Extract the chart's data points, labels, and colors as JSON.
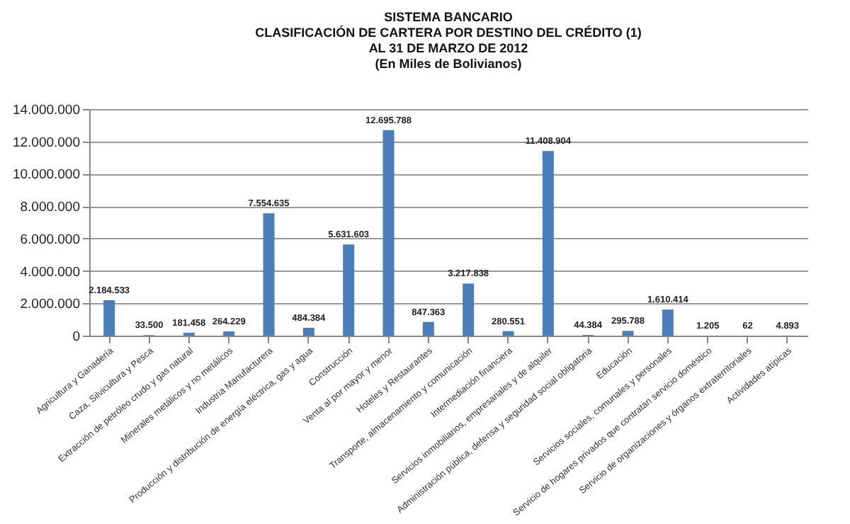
{
  "chart_data": {
    "type": "bar",
    "title": [
      "SISTEMA BANCARIO",
      "CLASIFICACIÓN DE CARTERA POR DESTINO DEL CRÉDITO (1)",
      "AL 31 DE MARZO  DE 2012",
      "(En Miles de Bolivianos)"
    ],
    "categories": [
      "Agricultura y Ganadería",
      "Caza, Silvicultura y Pesca",
      "Extracción de petróleo crudo y gas natural",
      "Minerales metálicos y no metálicos",
      "Industria Manufacturera",
      "Producción y distribución de energía eléctrica, gas y agua",
      "Construcción",
      "Venta al por mayor y menor",
      "Hoteles y Restaurantes",
      "Transporte, almacenamiento y comunicación",
      "Intermediación financiera",
      "Servicios inmobiliarios, empresariales y de alquiler",
      "Administración pública, defensa y seguridad social obligatoria",
      "Educación",
      "Servicios sociales, comunales y personales",
      "Servicio de hogares privados que contratan servicio doméstico",
      "Servicio de organizaciones y órganos extraterritoriales",
      "Actividades atípicas"
    ],
    "values": [
      2184533,
      33500,
      181458,
      264229,
      7554635,
      484384,
      5631603,
      12695788,
      847363,
      3217838,
      280551,
      11408904,
      44384,
      295788,
      1610414,
      1205,
      62,
      4893
    ],
    "value_labels": [
      "2.184.533",
      "33.500",
      "181.458",
      "264.229",
      "7.554.635",
      "484.384",
      "5.631.603",
      "12.695.788",
      "847.363",
      "3.217.838",
      "280.551",
      "11.408.904",
      "44.384",
      "295.788",
      "1.610.414",
      "1.205",
      "62",
      "4.893"
    ],
    "color": "#4a7ebb",
    "ylim": [
      0,
      14000000
    ],
    "yticks": [
      {
        "value": 0,
        "label": "0"
      },
      {
        "value": 2000000,
        "label": "2.000.000"
      },
      {
        "value": 4000000,
        "label": "4.000.000"
      },
      {
        "value": 6000000,
        "label": "6.000.000"
      },
      {
        "value": 8000000,
        "label": "8.000.000"
      },
      {
        "value": 10000000,
        "label": "10.000.000"
      },
      {
        "value": 12000000,
        "label": "12.000.000"
      },
      {
        "value": 14000000,
        "label": "14.000.000"
      }
    ],
    "grid": "y"
  }
}
